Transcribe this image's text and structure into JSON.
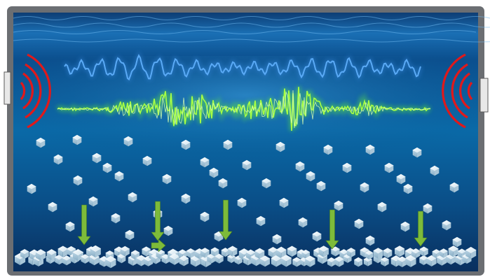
{
  "colors": {
    "frame": "#6b6e72",
    "water_top": "#0b3f78",
    "water_mid": "#0a6aa8",
    "water_bottom": "#0a3766",
    "surface_wave": "#7fc8ff",
    "signal_blue": "#5aaaf6",
    "signal_green": "#9cff3a",
    "transducer_arcs": "#e0191b",
    "settle_arrows": "#7dbb3a",
    "particle": "#dfeef6"
  },
  "icons": {
    "left_transducer": "transducer-icon",
    "right_transducer": "transducer-icon",
    "particles": "ice-cube-icon",
    "arrows": "down-arrow-icon"
  }
}
